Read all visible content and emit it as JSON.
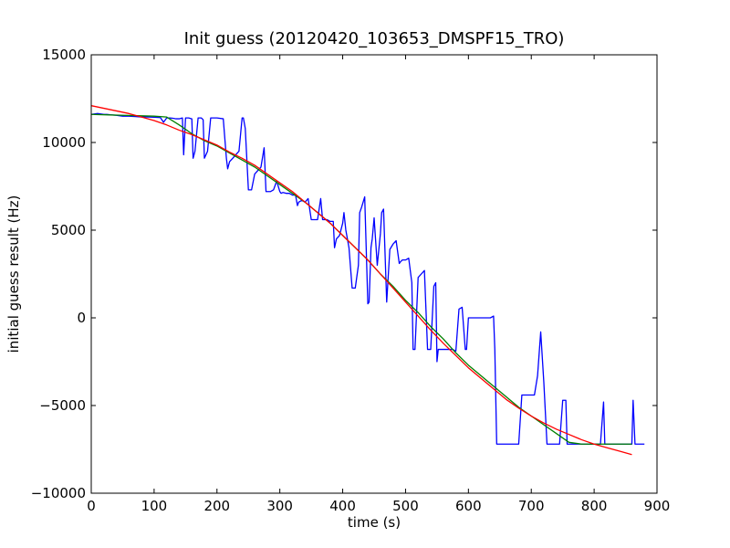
{
  "chart_data": {
    "type": "line",
    "title": "Init guess (20120420_103653_DMSPF15_TRO)",
    "xlabel": "time (s)",
    "ylabel": "initial guess result (Hz)",
    "xlim": [
      0,
      900
    ],
    "ylim": [
      -10000,
      15000
    ],
    "xticks": [
      0,
      100,
      200,
      300,
      400,
      500,
      600,
      700,
      800,
      900
    ],
    "yticks": [
      -10000,
      -5000,
      0,
      5000,
      10000,
      15000
    ],
    "xtick_labels": [
      "0",
      "100",
      "200",
      "300",
      "400",
      "500",
      "600",
      "700",
      "800",
      "900"
    ],
    "ytick_labels": [
      "−10000",
      "−5000",
      "0",
      "5000",
      "10000",
      "15000"
    ],
    "grid": false,
    "legend": "none",
    "series": [
      {
        "color": "#0000ff",
        "x": [
          0,
          10,
          20,
          25,
          30,
          40,
          50,
          60,
          70,
          80,
          90,
          100,
          110,
          115,
          120,
          125,
          130,
          135,
          140,
          145,
          147,
          150,
          155,
          160,
          162,
          165,
          170,
          175,
          178,
          180,
          185,
          190,
          195,
          200,
          210,
          215,
          217,
          220,
          225,
          230,
          235,
          240,
          242,
          245,
          250,
          255,
          260,
          265,
          270,
          275,
          278,
          280,
          285,
          290,
          295,
          300,
          302,
          305,
          310,
          315,
          320,
          325,
          328,
          330,
          335,
          340,
          345,
          350,
          355,
          360,
          365,
          368,
          370,
          375,
          380,
          385,
          387,
          390,
          395,
          400,
          402,
          405,
          410,
          415,
          420,
          425,
          427,
          430,
          435,
          440,
          442,
          445,
          447,
          450,
          455,
          460,
          462,
          465,
          470,
          475,
          480,
          485,
          490,
          492,
          495,
          500,
          505,
          510,
          512,
          515,
          520,
          525,
          530,
          535,
          540,
          545,
          548,
          550,
          552,
          555,
          560,
          565,
          570,
          575,
          580,
          585,
          590,
          595,
          597,
          600,
          605,
          610,
          615,
          620,
          625,
          630,
          635,
          640,
          642,
          645,
          650,
          655,
          660,
          665,
          670,
          675,
          680,
          685,
          690,
          695,
          700,
          705,
          710,
          715,
          720,
          725,
          730,
          735,
          740,
          745,
          750,
          755,
          757,
          760,
          765,
          770,
          775,
          780,
          785,
          790,
          795,
          800,
          805,
          810,
          815,
          817,
          820,
          825,
          830,
          835,
          840,
          845,
          850,
          855,
          860,
          862,
          865,
          870,
          875,
          880
        ],
        "y": [
          11600,
          11650,
          11600,
          11600,
          11580,
          11550,
          11500,
          11500,
          11480,
          11450,
          11450,
          11440,
          11420,
          11150,
          11400,
          11400,
          11380,
          11350,
          11350,
          11400,
          9300,
          11400,
          11400,
          11350,
          9100,
          9500,
          11400,
          11400,
          11300,
          9100,
          9500,
          11400,
          11400,
          11400,
          11350,
          9100,
          8500,
          8900,
          9100,
          9300,
          9500,
          11400,
          11400,
          10800,
          7300,
          7300,
          8200,
          8400,
          8600,
          9700,
          7200,
          7200,
          7200,
          7300,
          7800,
          7200,
          7100,
          7150,
          7100,
          7100,
          7000,
          7000,
          6400,
          6600,
          6700,
          6600,
          6800,
          5600,
          5600,
          5600,
          6800,
          5600,
          5600,
          5600,
          5500,
          5500,
          4000,
          4500,
          4700,
          5400,
          6000,
          5000,
          4000,
          1700,
          1700,
          3000,
          6000,
          6300,
          6900,
          800,
          900,
          4000,
          4500,
          5700,
          3000,
          4800,
          6000,
          6200,
          900,
          3900,
          4200,
          4400,
          3100,
          3200,
          3300,
          3300,
          3400,
          2000,
          -1800,
          -1800,
          2300,
          2500,
          2700,
          -1800,
          -1800,
          1800,
          2000,
          -2500,
          -1800,
          -1800,
          -1800,
          -1800,
          -1800,
          -1800,
          -1900,
          500,
          600,
          -1800,
          -1800,
          0,
          0,
          0,
          0,
          0,
          0,
          0,
          0,
          100,
          -1800,
          -7200,
          -7200,
          -7200,
          -7200,
          -7200,
          -7200,
          -7200,
          -7200,
          -4400,
          -4400,
          -4400,
          -4400,
          -4400,
          -3300,
          -800,
          -3700,
          -7200,
          -7200,
          -7200,
          -7200,
          -7200,
          -4700,
          -4700,
          -7200,
          -7200,
          -7200,
          -7200,
          -7200,
          -7200,
          -7200,
          -7200,
          -7200,
          -7200,
          -7200,
          -7200,
          -4800,
          -7200,
          -7200,
          -7200,
          -7200,
          -7200,
          -7200,
          -7200,
          -7200,
          -7200,
          -7200,
          -4700,
          -7200,
          -7200,
          -7200,
          -7200
        ]
      },
      {
        "color": "#008000",
        "x": [
          0,
          100,
          120,
          140,
          160,
          180,
          200,
          220,
          240,
          260,
          280,
          300,
          320,
          340,
          360,
          380,
          400,
          420,
          440,
          460,
          480,
          500,
          520,
          540,
          560,
          580,
          600,
          620,
          640,
          660,
          680,
          700,
          720,
          740,
          760,
          780,
          800,
          820,
          840,
          860
        ],
        "y": [
          11600,
          11500,
          11450,
          11000,
          10500,
          10100,
          9800,
          9400,
          9000,
          8600,
          8100,
          7600,
          7100,
          6600,
          6000,
          5400,
          4700,
          4000,
          3300,
          2500,
          1800,
          1000,
          300,
          -500,
          -1200,
          -2000,
          -2700,
          -3300,
          -3900,
          -4500,
          -5100,
          -5600,
          -6100,
          -6600,
          -7100,
          -7200,
          -7200,
          -7200,
          -7200,
          -7200
        ]
      },
      {
        "color": "#ff0000",
        "x": [
          0,
          20,
          40,
          60,
          80,
          100,
          120,
          140,
          160,
          180,
          200,
          220,
          240,
          260,
          280,
          300,
          320,
          340,
          360,
          380,
          400,
          420,
          440,
          460,
          480,
          500,
          520,
          540,
          560,
          580,
          600,
          620,
          640,
          660,
          680,
          700,
          720,
          740,
          760,
          780,
          800,
          820,
          840,
          860
        ],
        "y": [
          12100,
          11950,
          11800,
          11650,
          11450,
          11250,
          11000,
          10700,
          10450,
          10150,
          9850,
          9450,
          9100,
          8700,
          8200,
          7700,
          7200,
          6600,
          6000,
          5400,
          4700,
          4000,
          3300,
          2500,
          1700,
          900,
          100,
          -700,
          -1450,
          -2150,
          -2850,
          -3450,
          -4050,
          -4650,
          -5150,
          -5600,
          -6000,
          -6350,
          -6650,
          -6950,
          -7200,
          -7400,
          -7600,
          -7800
        ]
      }
    ]
  }
}
